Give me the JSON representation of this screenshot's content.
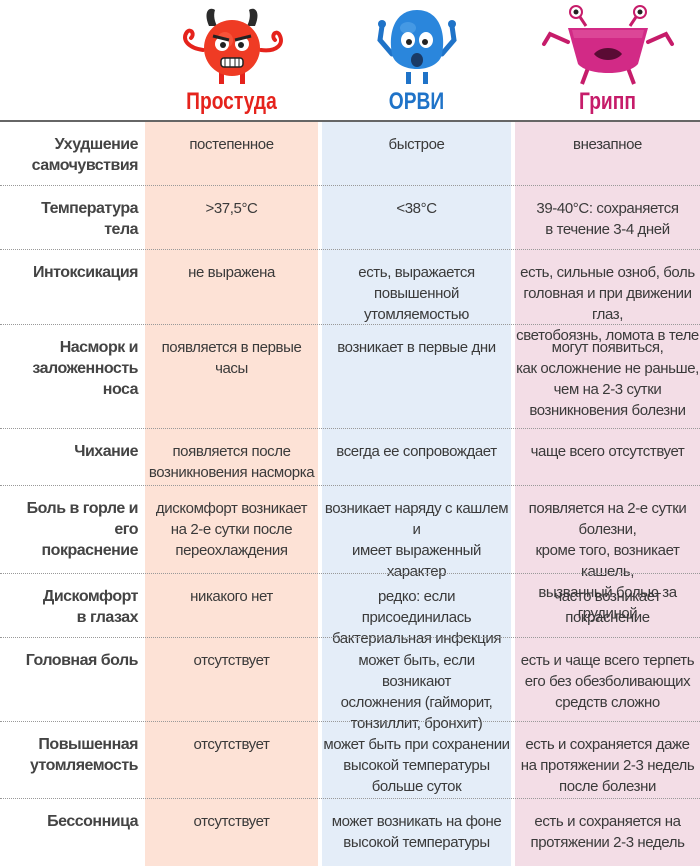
{
  "columns": [
    {
      "title": "Простуда",
      "mascot": "red-devil-mascot",
      "color": "#e5231c"
    },
    {
      "title": "ОРВИ",
      "mascot": "blue-mascot",
      "color": "#1f73c8"
    },
    {
      "title": "Грипп",
      "mascot": "pink-crab-mascot",
      "color": "#c61c6a"
    }
  ],
  "rows": [
    {
      "label": "Ухудшение\nсамочувствия",
      "values": [
        "постепенное",
        "быстрое",
        "внезапное"
      ]
    },
    {
      "label": "Температура\nтела",
      "values": [
        ">37,5°C",
        "<38°C",
        "39-40°C: сохраняется\nв течение 3-4 дней"
      ]
    },
    {
      "label": "Интоксикация",
      "values": [
        "не выражена",
        "есть, выражается повышенной\nутомляемостью",
        "есть, сильные озноб, боль\nголовная и при движении глаз,\nсветобоязнь, ломота в теле"
      ]
    },
    {
      "label": "Насморк и\nзаложенность носа",
      "values": [
        "появляется в первые часы",
        "возникает в первые дни",
        "могут появиться,\nкак осложнение не раньше,\nчем на 2-3 сутки\nвозникновения болезни"
      ]
    },
    {
      "label": "Чихание",
      "values": [
        "появляется после\nвозникновения насморка",
        "всегда ее сопровождает",
        "чаще всего отсутствует"
      ]
    },
    {
      "label": "Боль в горле и его\nпокраснение",
      "values": [
        "дискомфорт возникает\nна 2-е сутки после\nпереохлаждения",
        "возникает наряду с кашлем и\nимеет выраженный характер",
        "появляется на 2-е сутки болезни,\nкроме того, возникает кашель,\nвызванный болью за грудиной"
      ]
    },
    {
      "label": "Дискомфорт\nв глазах",
      "values": [
        "никакого нет",
        "редко: если присоединилась\nбактериальная инфекция",
        "часто возникает покраснение"
      ]
    },
    {
      "label": "Головная боль",
      "values": [
        "отсутствует",
        "может быть, если возникают\nосложнения (гайморит,\nтонзиллит, бронхит)",
        "есть и чаще всего терпеть\nего без обезболивающих\nсредств сложно"
      ]
    },
    {
      "label": "Повышенная\nутомляемость",
      "values": [
        "отсутствует",
        "может быть при сохранении\nвысокой температуры\nбольше суток",
        "есть и сохраняется даже\nна протяжении 2-3 недель\nпосле болезни"
      ]
    },
    {
      "label": "Бессонница",
      "values": [
        "отсутствует",
        "может возникать на фоне\nвысокой температуры",
        "есть и сохраняется на\nпротяжении 2-3 недель"
      ]
    }
  ]
}
